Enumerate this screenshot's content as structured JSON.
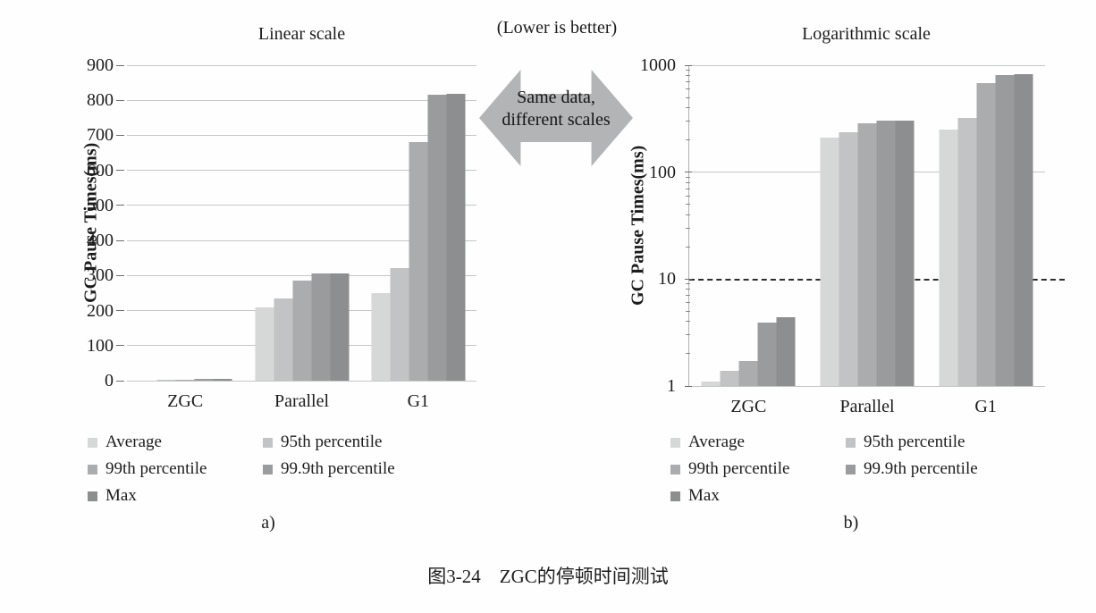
{
  "figure": {
    "caption": "图3-24　ZGC的停顿时间测试",
    "note": "(Lower is better)",
    "arrow_line1": "Same data,",
    "arrow_line2": "different scales",
    "arrow_color": "#b2b4b6"
  },
  "chart_data": [
    {
      "type": "bar",
      "scale": "linear",
      "title": "Linear scale",
      "panel_label": "a)",
      "ylabel": "GC Pause Times(ms)",
      "xlabel": "",
      "categories": [
        "ZGC",
        "Parallel",
        "G1"
      ],
      "series": [
        {
          "name": "Average",
          "color": "#d6d7d7",
          "values": [
            1.1,
            210,
            250
          ]
        },
        {
          "name": "95th percentile",
          "color": "#c1c3c5",
          "values": [
            1.4,
            235,
            320
          ]
        },
        {
          "name": "99th percentile",
          "color": "#aaacae",
          "values": [
            1.7,
            285,
            680
          ]
        },
        {
          "name": "99.9th percentile",
          "color": "#999b9d",
          "values": [
            3.9,
            305,
            815
          ]
        },
        {
          "name": "Max",
          "color": "#8c8e90",
          "values": [
            4.4,
            306,
            818
          ]
        }
      ],
      "ylim": [
        0,
        900
      ],
      "yticks": [
        0,
        100,
        200,
        300,
        400,
        500,
        600,
        700,
        800,
        900
      ],
      "grid": true,
      "y_axis_line": false,
      "dashed_gridlines": [],
      "legend_position": "bottom"
    },
    {
      "type": "bar",
      "scale": "log",
      "title": "Logarithmic scale",
      "panel_label": "b)",
      "ylabel": "GC Pause Times(ms)",
      "xlabel": "",
      "categories": [
        "ZGC",
        "Parallel",
        "G1"
      ],
      "series": [
        {
          "name": "Average",
          "color": "#d6d7d7",
          "values": [
            1.1,
            210,
            250
          ]
        },
        {
          "name": "95th percentile",
          "color": "#c1c3c5",
          "values": [
            1.4,
            235,
            320
          ]
        },
        {
          "name": "99th percentile",
          "color": "#aaacae",
          "values": [
            1.7,
            285,
            680
          ]
        },
        {
          "name": "99.9th percentile",
          "color": "#999b9d",
          "values": [
            3.9,
            305,
            815
          ]
        },
        {
          "name": "Max",
          "color": "#8c8e90",
          "values": [
            4.4,
            306,
            818
          ]
        }
      ],
      "ylim": [
        1,
        1000
      ],
      "yticks": [
        1,
        10,
        100,
        1000
      ],
      "grid": true,
      "y_axis_line": true,
      "minor_ticks": true,
      "dashed_gridlines": [
        10
      ],
      "legend_position": "bottom"
    }
  ]
}
